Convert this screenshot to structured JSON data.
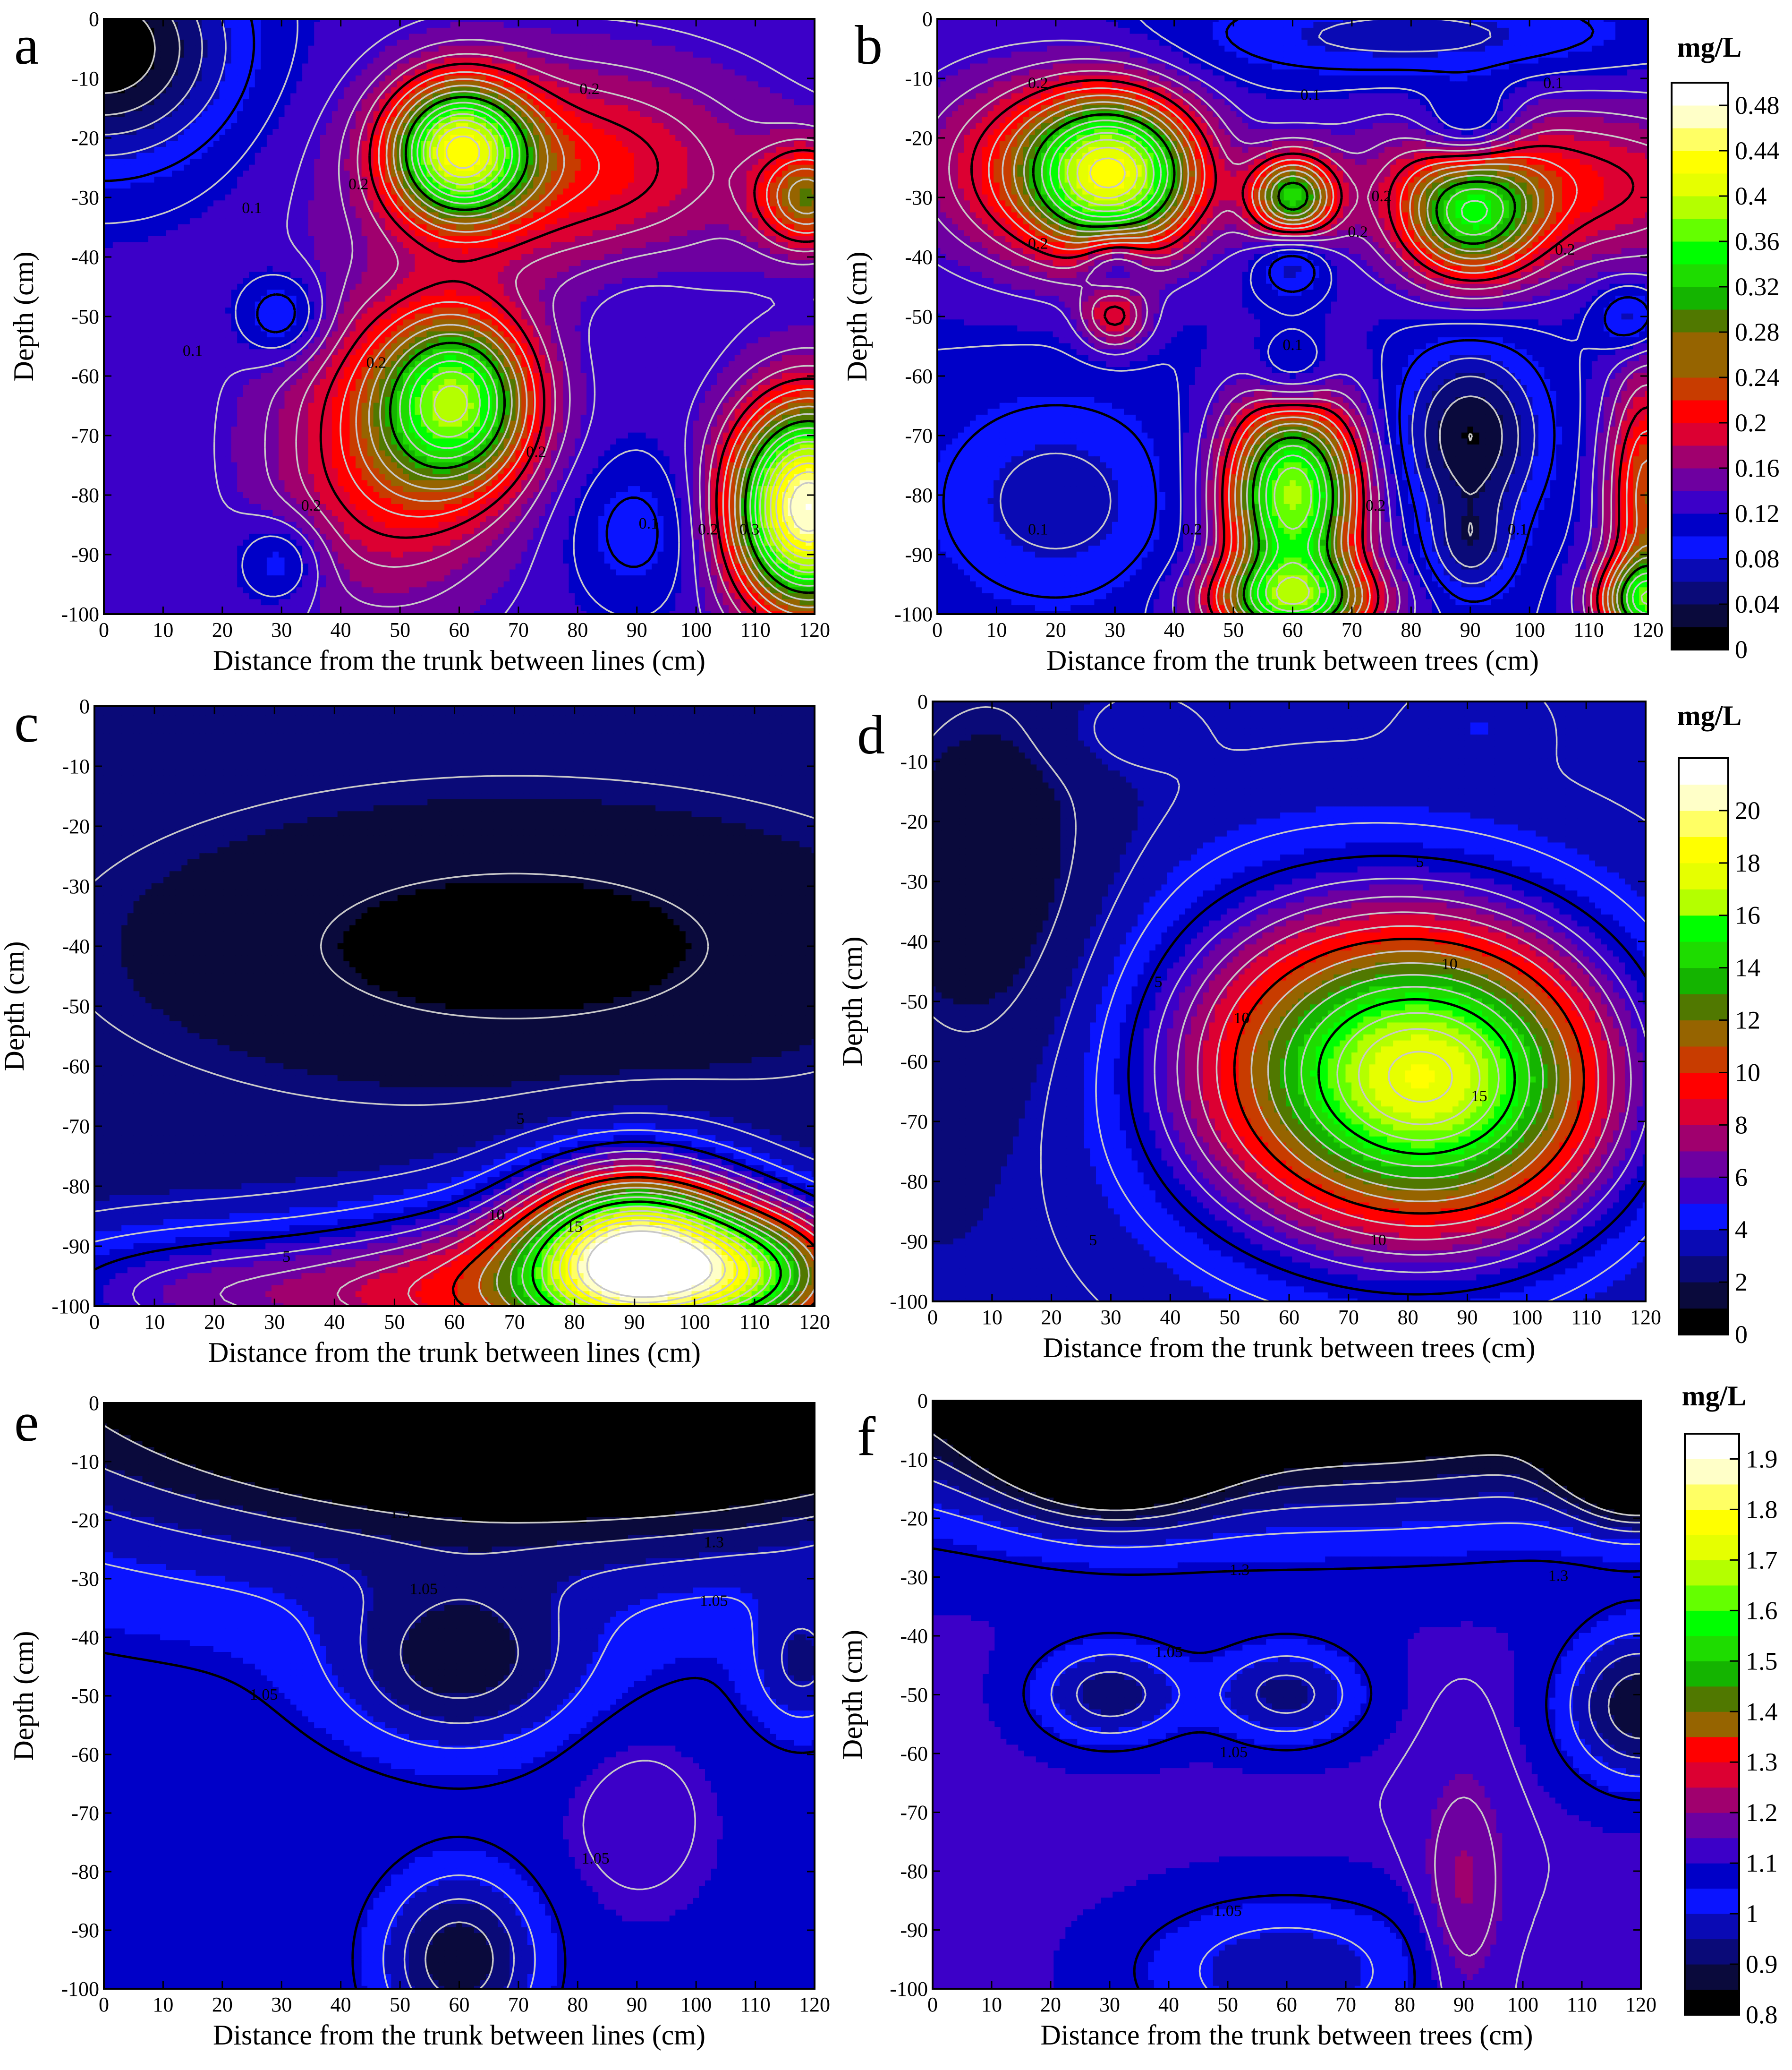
{
  "colors": {
    "colormap": [
      "#000000",
      "#0a0a3c",
      "#0a0a78",
      "#0a0ab4",
      "#0a14ff",
      "#0000c8",
      "#3c00c8",
      "#6e00a0",
      "#a0006e",
      "#dc0032",
      "#ff0000",
      "#c83c00",
      "#966400",
      "#507800",
      "#14b400",
      "#1edc00",
      "#00ff00",
      "#64ff00",
      "#b4ff00",
      "#e6ff00",
      "#ffff00",
      "#ffff64",
      "#ffffc8",
      "#ffffff"
    ],
    "contour_line": "#c8c8c8",
    "highlight_line": "#000000"
  },
  "chart_data": [
    {
      "panel": "a",
      "type": "heatmap",
      "xlabel": "Distance from the trunk between lines (cm)",
      "ylabel": "Depth (cm)",
      "xlim": [
        0,
        120
      ],
      "ylim": [
        -100,
        0
      ],
      "xticks": [
        "0",
        "10",
        "20",
        "30",
        "40",
        "50",
        "60",
        "70",
        "80",
        "90",
        "100",
        "110",
        "120"
      ],
      "yticks": [
        "0",
        "-10",
        "-20",
        "-30",
        "-40",
        "-50",
        "-60",
        "-70",
        "-80",
        "-90",
        "-100"
      ],
      "colorbar": "cb1",
      "background": 0.13,
      "features": [
        {
          "x": 0,
          "y": -5,
          "v": 0.0,
          "sx": 15,
          "sy": 13
        },
        {
          "x": 60,
          "y": -22,
          "v": 0.37,
          "sx": 8,
          "sy": 8
        },
        {
          "x": 78,
          "y": -25,
          "v": 0.22,
          "sx": 22,
          "sy": 12
        },
        {
          "x": 60,
          "y": -64,
          "v": 0.33,
          "sx": 9,
          "sy": 10
        },
        {
          "x": 48,
          "y": -72,
          "v": 0.22,
          "sx": 14,
          "sy": 18
        },
        {
          "x": 90,
          "y": -48,
          "v": 0.12,
          "sx": 7,
          "sy": 8
        },
        {
          "x": 90,
          "y": -86,
          "v": 0.09,
          "sx": 8,
          "sy": 9
        },
        {
          "x": 30,
          "y": -50,
          "v": 0.07,
          "sx": 5,
          "sy": 5
        },
        {
          "x": 30,
          "y": -91,
          "v": 0.08,
          "sx": 5,
          "sy": 5
        },
        {
          "x": 119,
          "y": -82,
          "v": 0.48,
          "sx": 9,
          "sy": 12
        },
        {
          "x": 119,
          "y": -30,
          "v": 0.26,
          "sx": 6,
          "sy": 6
        }
      ],
      "line_labels": [
        {
          "x": 82,
          "y": -12,
          "t": "0.2"
        },
        {
          "x": 43,
          "y": -28,
          "t": "0.2"
        },
        {
          "x": 25,
          "y": -32,
          "t": "0.1"
        },
        {
          "x": 15,
          "y": -56,
          "t": "0.1"
        },
        {
          "x": 46,
          "y": -58,
          "t": "0.2"
        },
        {
          "x": 73,
          "y": -73,
          "t": "0.2"
        },
        {
          "x": 35,
          "y": -82,
          "t": "0.2"
        },
        {
          "x": 92,
          "y": -85,
          "t": "0.1"
        },
        {
          "x": 102,
          "y": -86,
          "t": "0.2"
        },
        {
          "x": 109,
          "y": -86,
          "t": "0.3"
        }
      ]
    },
    {
      "panel": "b",
      "type": "heatmap",
      "xlabel": "Distance from the trunk between trees (cm)",
      "ylabel": "Depth (cm)",
      "xlim": [
        0,
        120
      ],
      "ylim": [
        -100,
        0
      ],
      "xticks": [
        "0",
        "10",
        "20",
        "30",
        "40",
        "50",
        "60",
        "70",
        "80",
        "90",
        "100",
        "110",
        "120"
      ],
      "yticks": [
        "0",
        "-10",
        "-20",
        "-30",
        "-40",
        "-50",
        "-60",
        "-70",
        "-80",
        "-90",
        "-100"
      ],
      "colorbar": "cb1",
      "background": 0.12,
      "features": [
        {
          "x": 30,
          "y": -26,
          "v": 0.38,
          "sx": 10,
          "sy": 9
        },
        {
          "x": 60,
          "y": -30,
          "v": 0.3,
          "sx": 5,
          "sy": 5
        },
        {
          "x": 90,
          "y": -33,
          "v": 0.28,
          "sx": 8,
          "sy": 8
        },
        {
          "x": 15,
          "y": -25,
          "v": 0.2,
          "sx": 15,
          "sy": 12
        },
        {
          "x": 105,
          "y": -28,
          "v": 0.21,
          "sx": 25,
          "sy": 10
        },
        {
          "x": 60,
          "y": -80,
          "v": 0.38,
          "sx": 8,
          "sy": 12
        },
        {
          "x": 60,
          "y": -98,
          "v": 0.3,
          "sx": 10,
          "sy": 5
        },
        {
          "x": 90,
          "y": -70,
          "v": 0.02,
          "sx": 8,
          "sy": 10
        },
        {
          "x": 90,
          "y": -89,
          "v": 0.06,
          "sx": 5,
          "sy": 6
        },
        {
          "x": 90,
          "y": -19,
          "v": 0.04,
          "sx": 6,
          "sy": 5
        },
        {
          "x": 80,
          "y": -3,
          "v": 0.07,
          "sx": 25,
          "sy": 5
        },
        {
          "x": 20,
          "y": -81,
          "v": 0.07,
          "sx": 14,
          "sy": 12
        },
        {
          "x": 30,
          "y": -41,
          "v": 0.06,
          "sx": 4,
          "sy": 4
        },
        {
          "x": 60,
          "y": -41,
          "v": 0.06,
          "sx": 4,
          "sy": 4
        },
        {
          "x": 60,
          "y": -60,
          "v": 0.06,
          "sx": 5,
          "sy": 5
        },
        {
          "x": 30,
          "y": -50,
          "v": 0.2,
          "sx": 4,
          "sy": 4
        },
        {
          "x": 117,
          "y": -50,
          "v": 0.06,
          "sx": 4,
          "sy": 4
        },
        {
          "x": 120,
          "y": -80,
          "v": 0.25,
          "sx": 5,
          "sy": 15
        },
        {
          "x": 120,
          "y": -98,
          "v": 0.3,
          "sx": 6,
          "sy": 5
        }
      ],
      "line_labels": [
        {
          "x": 17,
          "y": -11,
          "t": "0.2"
        },
        {
          "x": 63,
          "y": -13,
          "t": "0.1"
        },
        {
          "x": 104,
          "y": -11,
          "t": "0.1"
        },
        {
          "x": 75,
          "y": -30,
          "t": "0.2"
        },
        {
          "x": 17,
          "y": -38,
          "t": "0.2"
        },
        {
          "x": 71,
          "y": -36,
          "t": "0.2"
        },
        {
          "x": 106,
          "y": -39,
          "t": "0.2"
        },
        {
          "x": 60,
          "y": -55,
          "t": "0.1"
        },
        {
          "x": 17,
          "y": -86,
          "t": "0.1"
        },
        {
          "x": 43,
          "y": -86,
          "t": "0.2"
        },
        {
          "x": 74,
          "y": -82,
          "t": "0.2"
        },
        {
          "x": 98,
          "y": -86,
          "t": "0.1"
        }
      ]
    },
    {
      "panel": "c",
      "type": "heatmap",
      "xlabel": "Distance from the trunk between lines (cm)",
      "ylabel": "Depth (cm)",
      "xlim": [
        0,
        120
      ],
      "ylim": [
        -100,
        0
      ],
      "xticks": [
        "0",
        "10",
        "20",
        "30",
        "40",
        "50",
        "60",
        "70",
        "80",
        "90",
        "100",
        "110",
        "120"
      ],
      "yticks": [
        "0",
        "-10",
        "-20",
        "-30",
        "-40",
        "-50",
        "-60",
        "-70",
        "-80",
        "-90",
        "-100"
      ],
      "colorbar": "cb2",
      "background": 2.3,
      "features": [
        {
          "x": 70,
          "y": -40,
          "v": 0.5,
          "sx": 40,
          "sy": 15
        },
        {
          "x": 90,
          "y": -92,
          "v": 20.0,
          "sx": 13,
          "sy": 10
        },
        {
          "x": 112,
          "y": -95,
          "v": 12.0,
          "sx": 12,
          "sy": 8
        },
        {
          "x": 65,
          "y": -98,
          "v": 8.0,
          "sx": 20,
          "sy": 10
        },
        {
          "x": 20,
          "y": -98,
          "v": 6.5,
          "sx": 25,
          "sy": 8
        }
      ],
      "line_labels": [
        {
          "x": 71,
          "y": -69,
          "t": "5"
        },
        {
          "x": 32,
          "y": -92,
          "t": "5"
        },
        {
          "x": 67,
          "y": -85,
          "t": "10"
        },
        {
          "x": 80,
          "y": -87,
          "t": "15"
        }
      ]
    },
    {
      "panel": "d",
      "type": "heatmap",
      "xlabel": "Distance from the trunk between trees (cm)",
      "ylabel": "Depth (cm)",
      "xlim": [
        0,
        120
      ],
      "ylim": [
        -100,
        0
      ],
      "xticks": [
        "0",
        "10",
        "20",
        "30",
        "40",
        "50",
        "60",
        "70",
        "80",
        "90",
        "100",
        "110",
        "120"
      ],
      "yticks": [
        "0",
        "-10",
        "-20",
        "-30",
        "-40",
        "-50",
        "-60",
        "-70",
        "-80",
        "-90",
        "-100"
      ],
      "colorbar": "cb2",
      "background": 2.8,
      "features": [
        {
          "x": 87,
          "y": -63,
          "v": 16.0,
          "sx": 20,
          "sy": 18
        },
        {
          "x": 60,
          "y": -60,
          "v": 8.0,
          "sx": 20,
          "sy": 20
        },
        {
          "x": 10,
          "y": -30,
          "v": 1.2,
          "sx": 15,
          "sy": 25
        },
        {
          "x": 32,
          "y": -5,
          "v": 3.6,
          "sx": 8,
          "sy": 5
        },
        {
          "x": 92,
          "y": -4,
          "v": 3.6,
          "sx": 7,
          "sy": 5
        }
      ],
      "line_labels": [
        {
          "x": 82,
          "y": -27,
          "t": "5"
        },
        {
          "x": 38,
          "y": -47,
          "t": "5"
        },
        {
          "x": 27,
          "y": -90,
          "t": "5"
        },
        {
          "x": 87,
          "y": -44,
          "t": "10"
        },
        {
          "x": 52,
          "y": -53,
          "t": "10"
        },
        {
          "x": 75,
          "y": -90,
          "t": "10"
        },
        {
          "x": 92,
          "y": -66,
          "t": "15"
        }
      ]
    },
    {
      "panel": "e",
      "type": "heatmap",
      "xlabel": "Distance from the trunk between lines (cm)",
      "ylabel": "Depth (cm)",
      "xlim": [
        0,
        120
      ],
      "ylim": [
        -100,
        0
      ],
      "xticks": [
        "0",
        "10",
        "20",
        "30",
        "40",
        "50",
        "60",
        "70",
        "80",
        "90",
        "100",
        "110",
        "120"
      ],
      "yticks": [
        "0",
        "-10",
        "-20",
        "-30",
        "-40",
        "-50",
        "-60",
        "-70",
        "-80",
        "-90",
        "-100"
      ],
      "colorbar": "cb3",
      "background": 1.08,
      "features": [
        {
          "x": 88,
          "y": 2,
          "v": 0.8,
          "sx": 45,
          "sy": 14
        },
        {
          "x": 60,
          "y": 20,
          "v": 0.7,
          "sx": 70,
          "sy": 30
        },
        {
          "x": 60,
          "y": -45,
          "v": 0.9,
          "sx": 14,
          "sy": 10
        },
        {
          "x": 60,
          "y": -95,
          "v": 0.86,
          "sx": 9,
          "sy": 10
        },
        {
          "x": 90,
          "y": -70,
          "v": 1.13,
          "sx": 8,
          "sy": 10
        },
        {
          "x": 118,
          "y": -45,
          "v": 0.96,
          "sx": 6,
          "sy": 8
        }
      ],
      "line_labels": [
        {
          "x": 102,
          "y": -15,
          "t": "1.55"
        },
        {
          "x": 50,
          "y": -19,
          "t": "1.3"
        },
        {
          "x": 103,
          "y": -24,
          "t": "1.3"
        },
        {
          "x": 54,
          "y": -32,
          "t": "1.05"
        },
        {
          "x": 103,
          "y": -34,
          "t": "1.05"
        },
        {
          "x": 27,
          "y": -50,
          "t": "1.05"
        },
        {
          "x": 83,
          "y": -78,
          "t": "1.05"
        }
      ]
    },
    {
      "panel": "f",
      "type": "heatmap",
      "xlabel": "Distance from the trunk between trees (cm)",
      "ylabel": "Depth (cm)",
      "xlim": [
        0,
        120
      ],
      "ylim": [
        -100,
        0
      ],
      "xticks": [
        "0",
        "10",
        "20",
        "30",
        "40",
        "50",
        "60",
        "70",
        "80",
        "90",
        "100",
        "110",
        "120"
      ],
      "yticks": [
        "0",
        "-10",
        "-20",
        "-30",
        "-40",
        "-50",
        "-60",
        "-70",
        "-80",
        "-90",
        "-100"
      ],
      "colorbar": "cb3",
      "background": 1.1,
      "features": [
        {
          "x": 60,
          "y": 10,
          "v": 0.6,
          "sx": 65,
          "sy": 18
        },
        {
          "x": 30,
          "y": 0,
          "v": 0.4,
          "sx": 12,
          "sy": 10
        },
        {
          "x": 120,
          "y": -5,
          "v": 0.25,
          "sx": 8,
          "sy": 8
        },
        {
          "x": 30,
          "y": -50,
          "v": 0.92,
          "sx": 9,
          "sy": 6
        },
        {
          "x": 60,
          "y": -50,
          "v": 0.93,
          "sx": 9,
          "sy": 6
        },
        {
          "x": 120,
          "y": -52,
          "v": 0.86,
          "sx": 9,
          "sy": 9
        },
        {
          "x": 60,
          "y": -97,
          "v": 0.96,
          "sx": 18,
          "sy": 9
        },
        {
          "x": 90,
          "y": -85,
          "v": 1.2,
          "sx": 5,
          "sy": 15
        }
      ],
      "line_labels": [
        {
          "x": 52,
          "y": -29,
          "t": "1.3"
        },
        {
          "x": 106,
          "y": -30,
          "t": "1.3"
        },
        {
          "x": 40,
          "y": -43,
          "t": "1.05"
        },
        {
          "x": 51,
          "y": -60,
          "t": "1.05"
        },
        {
          "x": 50,
          "y": -87,
          "t": "1.05"
        }
      ]
    }
  ],
  "colorbars": {
    "cb1": {
      "unit": "mg/L",
      "min": 0,
      "max": 0.5,
      "step": 0.02,
      "ticks": [
        "0.48",
        "0.44",
        "0.4",
        "0.36",
        "0.32",
        "0.28",
        "0.24",
        "0.2",
        "0.16",
        "0.12",
        "0.08",
        "0.04",
        "0"
      ],
      "tick_values": [
        0.48,
        0.44,
        0.4,
        0.36,
        0.32,
        0.28,
        0.24,
        0.2,
        0.16,
        0.12,
        0.08,
        0.04,
        0
      ],
      "highlight": [
        0.1,
        0.2,
        0.3
      ]
    },
    "cb2": {
      "unit": "mg/L",
      "min": 0,
      "max": 22,
      "step": 1,
      "ticks": [
        "20",
        "18",
        "16",
        "14",
        "12",
        "10",
        "8",
        "6",
        "4",
        "2",
        "0"
      ],
      "tick_values": [
        20,
        18,
        16,
        14,
        12,
        10,
        8,
        6,
        4,
        2,
        0
      ],
      "highlight": [
        5,
        10,
        15
      ]
    },
    "cb3": {
      "unit": "mg/L",
      "min": 0.8,
      "max": 1.95,
      "step": 0.05,
      "ticks": [
        "1.9",
        "1.8",
        "1.7",
        "1.6",
        "1.5",
        "1.4",
        "1.3",
        "1.2",
        "1.1",
        "1",
        "0.9",
        "0.8"
      ],
      "tick_values": [
        1.9,
        1.8,
        1.7,
        1.6,
        1.5,
        1.4,
        1.3,
        1.2,
        1.1,
        1.0,
        0.9,
        0.8
      ],
      "highlight": [
        1.05,
        1.3,
        1.55
      ]
    }
  }
}
